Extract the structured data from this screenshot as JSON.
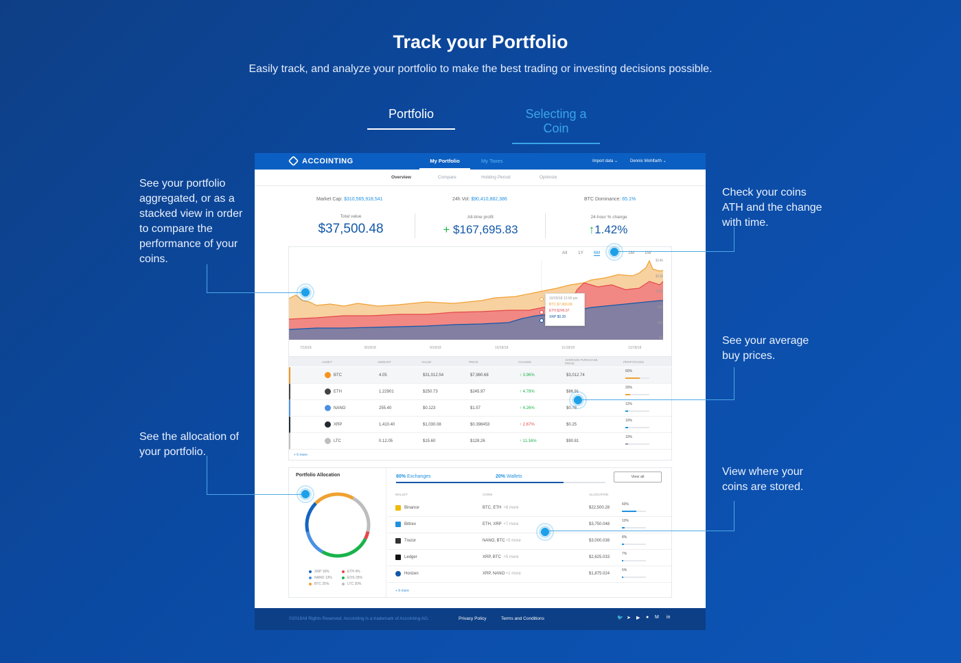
{
  "hero": {
    "title": "Track your Portfolio",
    "subtitle": "Easily track, and analyze your portfolio to make the best trading or investing decisions possible."
  },
  "tabs": [
    {
      "label": "Portfolio",
      "active": true
    },
    {
      "label": "Selecting a Coin",
      "active": false
    }
  ],
  "callouts": {
    "left1": "See your portfolio aggregated, or as a stacked view in order to compare the performance of your coins.",
    "left2": "See the allocation of your portfolio.",
    "right1": "Check your coins ATH and the change with time.",
    "right2": "See your average buy prices.",
    "right3": "View where your coins are stored."
  },
  "app": {
    "brand": "ACCOINTING",
    "nav": {
      "my_portfolio": "My Portfolio",
      "my_taxes": "My Taxes",
      "import_data": "Import data",
      "user": "Dennis Wohlfarth"
    },
    "subnav": [
      "Overview",
      "Compare",
      "Holding Period",
      "Optimize"
    ],
    "market": {
      "market_cap_label": "Market Cap:",
      "market_cap": "$310,565,918,541",
      "vol_label": "24h Vol:",
      "vol": "$90,410,882,386",
      "dominance_label": "BTC Dominance:",
      "dominance": "65.1%"
    },
    "kpis": {
      "total_label": "Total value",
      "total": "$37,500.48",
      "profit_label": "All-time profit",
      "profit": "$167,695.83",
      "change_label": "24-hour % change",
      "change": "1.42%"
    },
    "ranges": [
      "All",
      "1Y",
      "6M",
      "3M",
      "1M",
      "1W"
    ],
    "y_ticks": [
      "$14k",
      "$12k",
      "$10k",
      "$8k",
      "$6k",
      "$0"
    ],
    "x_ticks": [
      "7/18/18",
      "8/18/18",
      "9/18/18",
      "10/18/18",
      "11/18/18",
      "12/18/18"
    ],
    "tooltip": {
      "date": "10/29/18 12:00 pm",
      "btc": "BTC $7,969.68",
      "eth": "ETH $245.97",
      "xrp": "XRP $0.39"
    },
    "table": {
      "headers": [
        "ASSET",
        "AMOUNT",
        "VALUE",
        "PRICE",
        "CHANGE",
        "AVERAGE PURCHASE PRICE",
        "PROFIT/LOSS"
      ],
      "rows": [
        {
          "asset": "BTC",
          "amount": "4.05",
          "value": "$31,012.54",
          "price": "$7,980.68",
          "change": "3.96%",
          "dir": "up",
          "avg": "$3,012.74",
          "pl": "60%",
          "color": "#f7931a"
        },
        {
          "asset": "ETH",
          "amount": "1.22901",
          "value": "$250.73",
          "price": "$245.97",
          "change": "4.78%",
          "dir": "up",
          "avg": "$86.91",
          "pl": "20%",
          "color": "#444444"
        },
        {
          "asset": "NANO",
          "amount": "255.40",
          "value": "$0.123",
          "price": "$1.57",
          "change": "4.26%",
          "dir": "up",
          "avg": "$0.78",
          "pl": "12%",
          "color": "#4a90e2"
        },
        {
          "asset": "XRP",
          "amount": "1,410.40",
          "value": "$1,030.08",
          "price": "$0.398453",
          "change": "2.67%",
          "dir": "down",
          "avg": "$0.25",
          "pl": "10%",
          "color": "#23292f"
        },
        {
          "asset": "LTC",
          "amount": "0.12.05",
          "value": "$15.60",
          "price": "$128.26",
          "change": "11.16%",
          "dir": "up",
          "avg": "$90.81",
          "pl": "10%",
          "color": "#bebebe"
        }
      ],
      "more": "+ 6 more"
    },
    "allocation": {
      "title": "Portfolio Allocation",
      "exchanges_pct": "80%",
      "exchanges_label": "Exchanges",
      "wallets_pct": "20%",
      "wallets_label": "Wallets",
      "view_all": "View all",
      "headers": [
        "WALLET",
        "COINS",
        "ALLOCATION"
      ],
      "legend": [
        {
          "label": "XRP 16%",
          "color": "#1565c0"
        },
        {
          "label": "ETH 4%",
          "color": "#e4484b"
        },
        {
          "label": "NANO 13%",
          "color": "#4a90e2"
        },
        {
          "label": "EOS 26%",
          "color": "#19b34a"
        },
        {
          "label": "BTC 25%",
          "color": "#f0a030"
        },
        {
          "label": "LTC 20%",
          "color": "#bdbdbd"
        }
      ],
      "wallets": [
        {
          "name": "Binance",
          "coins": "BTC, ETH",
          "more": "+8 more",
          "alloc": "$22,500.28",
          "pct": "60%"
        },
        {
          "name": "Bittrex",
          "coins": "ETH, XRP",
          "more": "+7 more",
          "alloc": "$3,750.048",
          "pct": "10%"
        },
        {
          "name": "Trezor",
          "coins": "NANO, BTC",
          "more": "+5 more",
          "alloc": "$3,000.038",
          "pct": "8%"
        },
        {
          "name": "Ledger",
          "coins": "XRP, BTC",
          "more": "+5 more",
          "alloc": "$2,625.033",
          "pct": "7%"
        },
        {
          "name": "Horizen",
          "coins": "XRP, NANO",
          "more": "+1 more",
          "alloc": "$1,875.024",
          "pct": "5%"
        }
      ],
      "more": "+ 9 more"
    },
    "footer": {
      "copyright": "©2019All Rights Reserved. Accointing is a trademark of Accointing AG.",
      "privacy": "Privacy Policy",
      "terms": "Terms and Conditions"
    }
  }
}
